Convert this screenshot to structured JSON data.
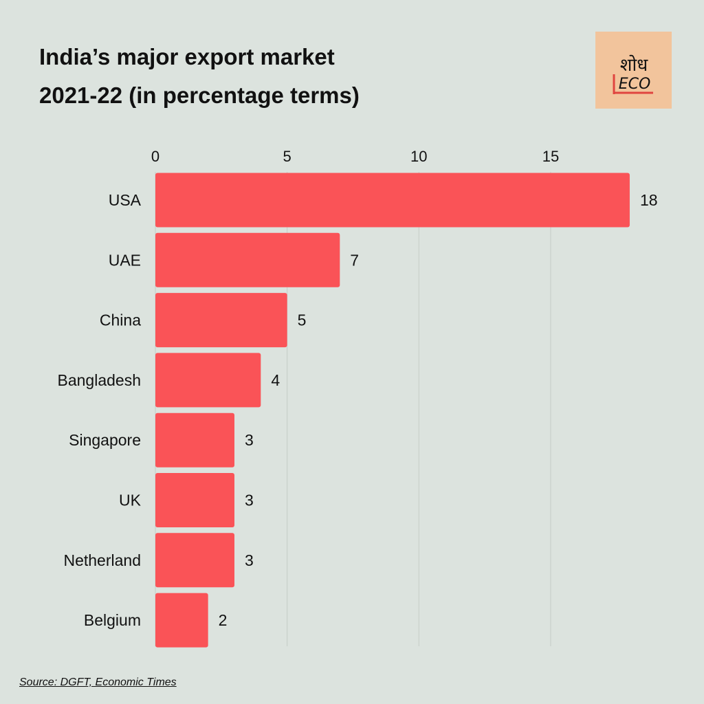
{
  "title": {
    "line1": "India’s major export market",
    "line2": "2021-22 (in percentage terms)"
  },
  "logo": {
    "devanagari": "शोध",
    "latin": "ECO",
    "background": "#f2c49c",
    "accent": "#e0453f"
  },
  "source": "Source: DGFT, Economic Times",
  "colors": {
    "background": "#dce3de",
    "bar": "#fa5357",
    "grid": "#c5cdc7",
    "text": "#111111"
  },
  "chart_data": {
    "type": "bar",
    "orientation": "horizontal",
    "categories": [
      "USA",
      "UAE",
      "China",
      "Bangladesh",
      "Singapore",
      "UK",
      "Netherland",
      "Belgium"
    ],
    "values": [
      18,
      7,
      5,
      4,
      3,
      3,
      3,
      2
    ],
    "data_labels": [
      "18",
      "7",
      "5",
      "4",
      "3",
      "3",
      "3",
      "2"
    ],
    "xticks": [
      0,
      5,
      10,
      15
    ],
    "xlim": [
      0,
      18
    ],
    "xaxis_position": "top",
    "grid": "vertical",
    "legend": "none",
    "title": "India’s major export market 2021-22 (in percentage terms)"
  }
}
